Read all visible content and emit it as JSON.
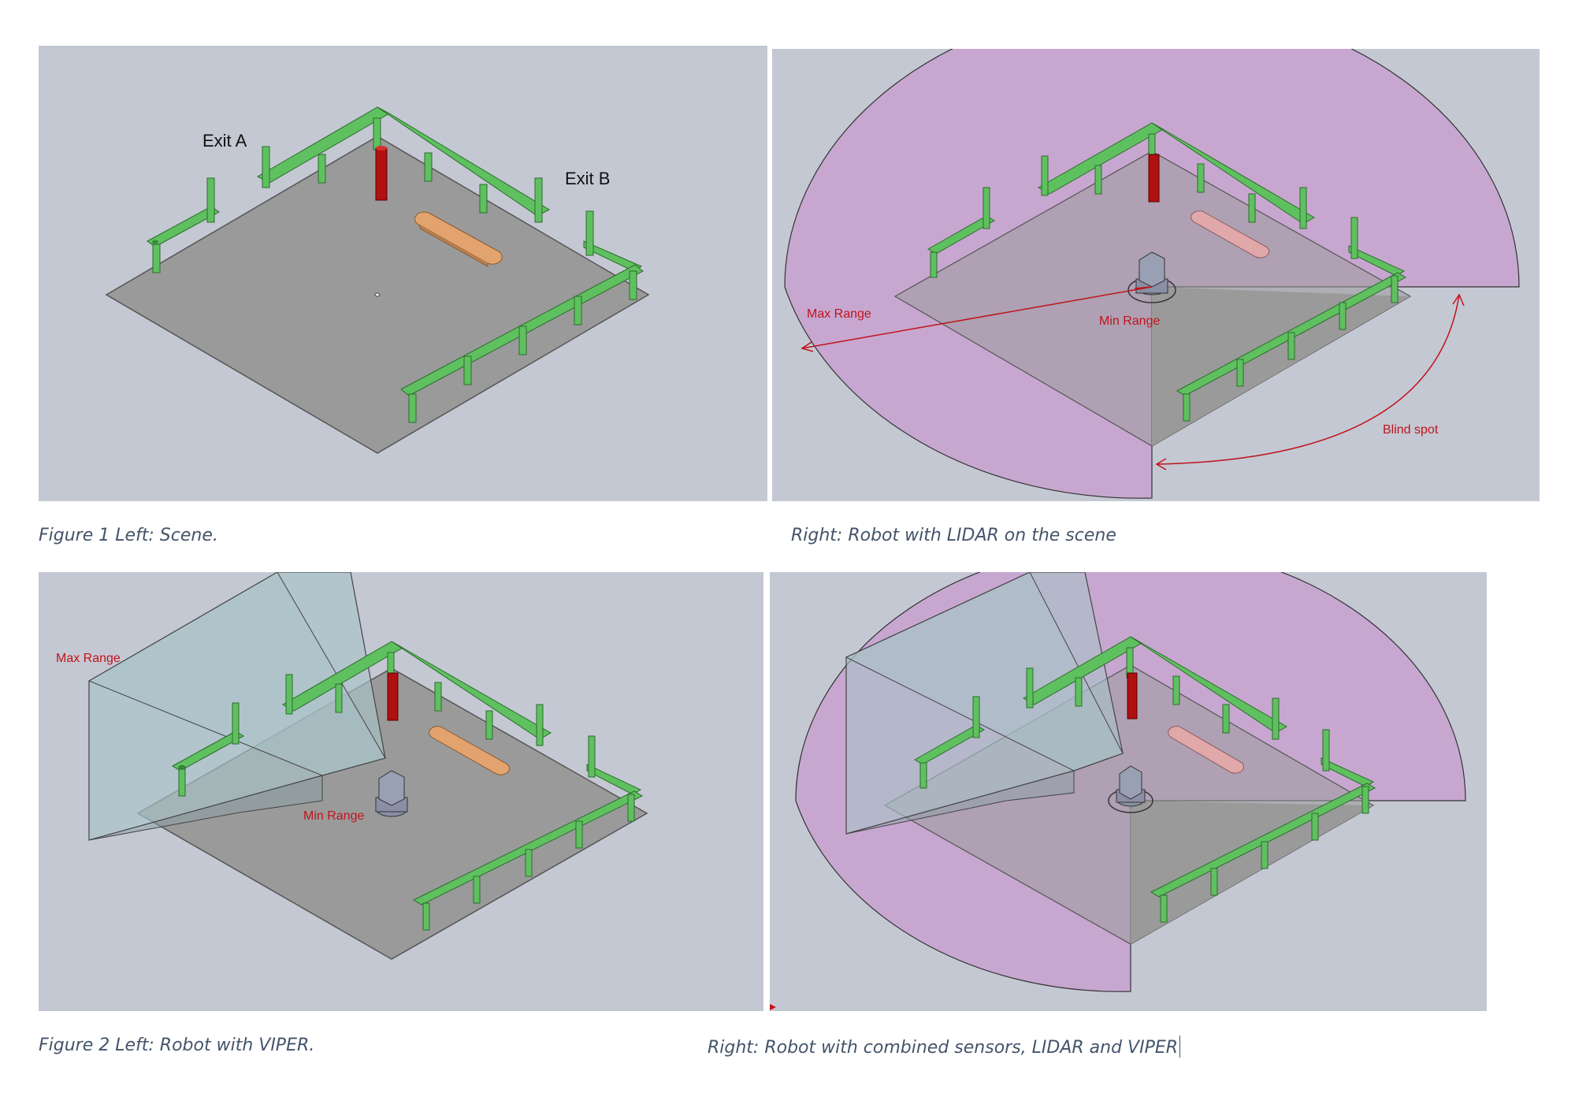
{
  "figure1": {
    "left_caption": "Figure 1 Left: Scene.",
    "right_caption": "Right: Robot with LIDAR on the scene",
    "exit_a": "Exit A",
    "exit_b": "Exit B",
    "lidar_max_range": "Max Range",
    "lidar_min_range": "Min Range",
    "lidar_blind_spot": "Blind spot"
  },
  "figure2": {
    "left_caption": "Figure 2 Left: Robot with VIPER.",
    "right_caption": "Right: Robot with combined sensors, LIDAR and VIPER",
    "viper_max_range": "Max Range",
    "viper_min_range": "Min Range"
  },
  "colors": {
    "panel_bg": "#c4c8d3",
    "floor": "#9a9a9a",
    "fence": "#5fc05f",
    "red_post": "#b01010",
    "bench": "#e2a36f",
    "lidar_zone": "#c8a3cf",
    "viper_zone": "#a9c3c8",
    "annotation_red": "#c0141c",
    "caption": "#44546a"
  }
}
